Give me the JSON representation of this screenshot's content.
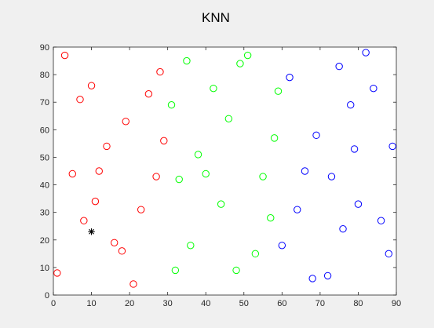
{
  "chart_data": {
    "type": "scatter",
    "title": "KNN",
    "xlabel": "",
    "ylabel": "",
    "xlim": [
      0,
      90
    ],
    "ylim": [
      0,
      90
    ],
    "grid": false,
    "xticks": [
      0,
      10,
      20,
      30,
      40,
      50,
      60,
      70,
      80,
      90
    ],
    "yticks": [
      0,
      10,
      20,
      30,
      40,
      50,
      60,
      70,
      80,
      90
    ],
    "xtick_labels": [
      "0",
      "10",
      "20",
      "30",
      "40",
      "50",
      "60",
      "70",
      "80",
      "90"
    ],
    "ytick_labels": [
      "0",
      "10",
      "20",
      "30",
      "40",
      "50",
      "60",
      "70",
      "80",
      "90"
    ],
    "series": [
      {
        "color": "#ff0000",
        "marker": "circle",
        "points": [
          [
            1,
            8
          ],
          [
            3,
            87
          ],
          [
            5,
            44
          ],
          [
            7,
            71
          ],
          [
            8,
            27
          ],
          [
            10,
            76
          ],
          [
            11,
            34
          ],
          [
            12,
            45
          ],
          [
            14,
            54
          ],
          [
            16,
            19
          ],
          [
            18,
            16
          ],
          [
            19,
            63
          ],
          [
            21,
            4
          ],
          [
            23,
            31
          ],
          [
            25,
            73
          ],
          [
            27,
            43
          ],
          [
            28,
            81
          ],
          [
            29,
            56
          ]
        ]
      },
      {
        "color": "#00ff00",
        "marker": "circle",
        "points": [
          [
            31,
            69
          ],
          [
            32,
            9
          ],
          [
            33,
            42
          ],
          [
            35,
            85
          ],
          [
            36,
            18
          ],
          [
            38,
            51
          ],
          [
            40,
            44
          ],
          [
            42,
            75
          ],
          [
            44,
            33
          ],
          [
            46,
            64
          ],
          [
            48,
            9
          ],
          [
            49,
            84
          ],
          [
            51,
            87
          ],
          [
            53,
            15
          ],
          [
            55,
            43
          ],
          [
            57,
            28
          ],
          [
            58,
            57
          ],
          [
            59,
            74
          ]
        ]
      },
      {
        "color": "#0000ff",
        "marker": "circle",
        "points": [
          [
            60,
            18
          ],
          [
            62,
            79
          ],
          [
            64,
            31
          ],
          [
            66,
            45
          ],
          [
            68,
            6
          ],
          [
            69,
            58
          ],
          [
            72,
            7
          ],
          [
            73,
            43
          ],
          [
            75,
            83
          ],
          [
            76,
            24
          ],
          [
            78,
            69
          ],
          [
            79,
            53
          ],
          [
            80,
            33
          ],
          [
            82,
            88
          ],
          [
            84,
            75
          ],
          [
            86,
            27
          ],
          [
            88,
            15
          ],
          [
            89,
            54
          ]
        ]
      },
      {
        "color": "#000000",
        "marker": "asterisk",
        "points": [
          [
            10,
            23
          ]
        ]
      }
    ],
    "colors": {
      "figure_background": "#f0f0f0",
      "axes_background": "#ffffff",
      "axis_color": "#262626"
    }
  }
}
